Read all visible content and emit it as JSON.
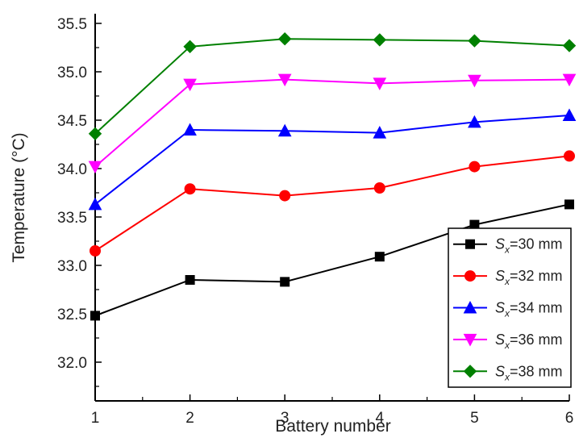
{
  "chart_data": {
    "type": "line",
    "xlabel": "Battery number",
    "ylabel": "Temperature (°C)",
    "x": [
      1,
      2,
      3,
      4,
      5,
      6
    ],
    "xlim": [
      1,
      6
    ],
    "ylim": [
      31.6,
      35.6
    ],
    "y_ticks": [
      "32.0",
      "32.5",
      "33.0",
      "33.5",
      "34.0",
      "34.5",
      "35.0",
      "35.5"
    ],
    "x_ticks": [
      "1",
      "2",
      "3",
      "4",
      "5",
      "6"
    ],
    "grid": false,
    "legend_position": "bottom-right",
    "series": [
      {
        "name": "Sx=30 mm",
        "label_main": "S",
        "label_sub": "x",
        "label_rest": "=30 mm",
        "color": "#000000",
        "marker": "square",
        "values": [
          32.48,
          32.85,
          32.83,
          33.09,
          33.42,
          33.63
        ]
      },
      {
        "name": "Sx=32 mm",
        "label_main": "S",
        "label_sub": "x",
        "label_rest": "=32 mm",
        "color": "#ff0000",
        "marker": "circle",
        "values": [
          33.15,
          33.79,
          33.72,
          33.8,
          34.02,
          34.13
        ]
      },
      {
        "name": "Sx=34 mm",
        "label_main": "S",
        "label_sub": "x",
        "label_rest": "=34 mm",
        "color": "#0000ff",
        "marker": "triangle-up",
        "values": [
          33.63,
          34.4,
          34.39,
          34.37,
          34.48,
          34.55
        ]
      },
      {
        "name": "Sx=36 mm",
        "label_main": "S",
        "label_sub": "x",
        "label_rest": "=36 mm",
        "color": "#ff00ff",
        "marker": "triangle-down",
        "values": [
          34.02,
          34.87,
          34.92,
          34.88,
          34.91,
          34.92
        ]
      },
      {
        "name": "Sx=38 mm",
        "label_main": "S",
        "label_sub": "x",
        "label_rest": "=38 mm",
        "color": "#008000",
        "marker": "diamond",
        "values": [
          34.36,
          35.26,
          35.34,
          35.33,
          35.32,
          35.27
        ]
      }
    ]
  }
}
